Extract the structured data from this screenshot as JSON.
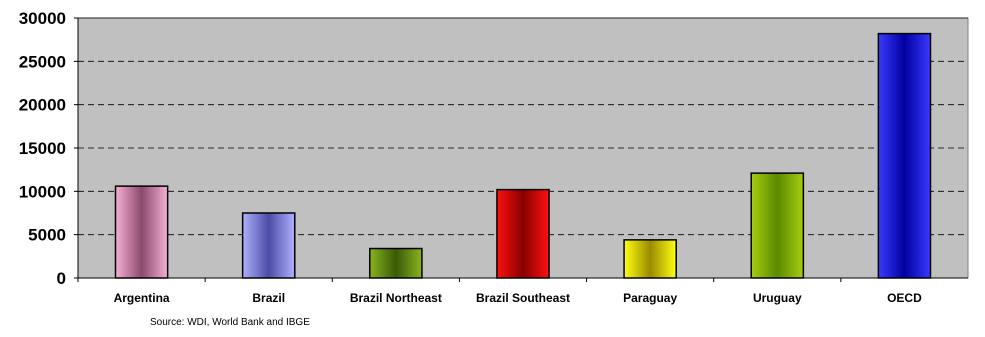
{
  "chart_data": {
    "type": "bar",
    "categories": [
      "Argentina",
      "Brazil",
      "Brazil Northeast",
      "Brazil Southeast",
      "Paraguay",
      "Uruguay",
      "OECD"
    ],
    "values": [
      10600,
      7500,
      3400,
      10200,
      4400,
      12100,
      28200
    ],
    "ylim": [
      0,
      30000
    ],
    "yticks": [
      "0",
      "5000",
      "10000",
      "15000",
      "20000",
      "25000",
      "30000"
    ],
    "grid": true,
    "legend": "none",
    "plot_background": "#c0c0c0",
    "bar_gradients": [
      [
        "#f6b0d6",
        "#8a4a6a"
      ],
      [
        "#b0b0ff",
        "#4c4ca6"
      ],
      [
        "#8ab41e",
        "#3a5a08"
      ],
      [
        "#ff1010",
        "#880000"
      ],
      [
        "#ffff10",
        "#9a8a00"
      ],
      [
        "#a6cc10",
        "#5a8a00"
      ],
      [
        "#3a3aff",
        "#0000a0"
      ]
    ]
  },
  "source_note": "Source: WDI, World Bank and IBGE"
}
